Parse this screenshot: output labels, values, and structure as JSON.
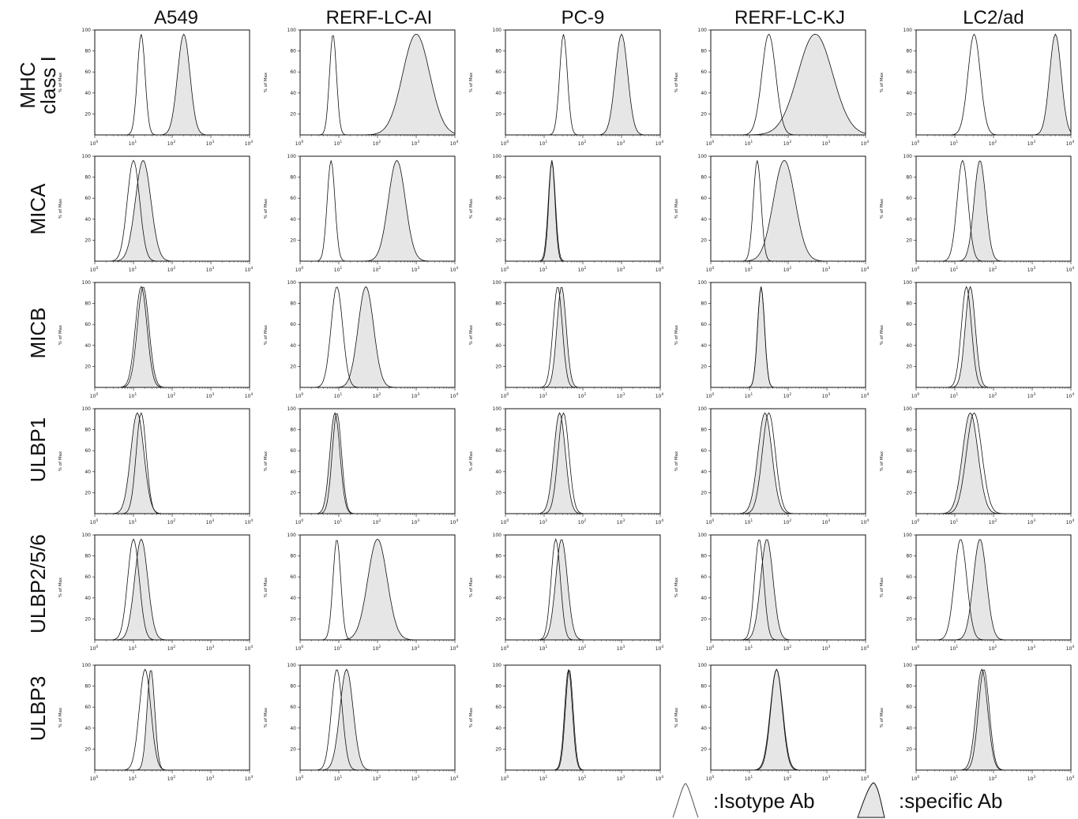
{
  "columns": [
    "A549",
    "RERF-LC-AI",
    "PC-9",
    "RERF-LC-KJ",
    "LC2/ad"
  ],
  "rows": [
    [
      "MHC",
      "class I"
    ],
    [
      "MICA"
    ],
    [
      "MICB"
    ],
    [
      "ULBP1"
    ],
    [
      "ULBP2/5/6"
    ],
    [
      "ULBP3"
    ]
  ],
  "y_axis_label": "% of Max",
  "y_ticks": [
    "20",
    "40",
    "60",
    "80",
    "100"
  ],
  "x_tick_base": "10",
  "x_tick_exponents": [
    "0",
    "1",
    "2",
    "3",
    "4"
  ],
  "legend": {
    "isotype": ":Isotype Ab",
    "specific": ":specific Ab"
  },
  "colors": {
    "specific_fill": "#e6e6e6",
    "outline": "#111111"
  },
  "chart_data": {
    "type": "histogram",
    "x_scale": "log10",
    "xlim": [
      1,
      10000
    ],
    "ylim": [
      0,
      100
    ],
    "note_series": "each panel: isotype = unfilled histogram, specific = gray-filled histogram; peak given as log10 of fluorescence intensity, width as log10 spread",
    "panels": [
      {
        "row": "MHC class I",
        "column": "A549",
        "isotype": {
          "peak": 1.2,
          "width": 0.1
        },
        "specific": {
          "peak": 2.3,
          "width": 0.16
        }
      },
      {
        "row": "MHC class I",
        "column": "RERF-LC-AI",
        "isotype": {
          "peak": 0.85,
          "width": 0.09
        },
        "specific": {
          "peak": 3.0,
          "width": 0.35
        }
      },
      {
        "row": "MHC class I",
        "column": "PC-9",
        "isotype": {
          "peak": 1.5,
          "width": 0.1
        },
        "specific": {
          "peak": 3.0,
          "width": 0.16
        }
      },
      {
        "row": "MHC class I",
        "column": "RERF-LC-KJ",
        "isotype": {
          "peak": 1.5,
          "width": 0.18
        },
        "specific": {
          "peak": 2.7,
          "width": 0.45
        }
      },
      {
        "row": "MHC class I",
        "column": "LC2/ad",
        "isotype": {
          "peak": 1.5,
          "width": 0.16
        },
        "specific": {
          "peak": 3.6,
          "width": 0.15
        }
      },
      {
        "row": "MICA",
        "column": "A549",
        "isotype": {
          "peak": 1.0,
          "width": 0.16
        },
        "specific": {
          "peak": 1.25,
          "width": 0.2
        }
      },
      {
        "row": "MICA",
        "column": "RERF-LC-AI",
        "isotype": {
          "peak": 0.8,
          "width": 0.1
        },
        "specific": {
          "peak": 2.5,
          "width": 0.22
        }
      },
      {
        "row": "MICA",
        "column": "PC-9",
        "isotype": {
          "peak": 1.2,
          "width": 0.08
        },
        "specific": {
          "peak": 1.2,
          "width": 0.09
        }
      },
      {
        "row": "MICA",
        "column": "RERF-LC-KJ",
        "isotype": {
          "peak": 1.2,
          "width": 0.1
        },
        "specific": {
          "peak": 1.9,
          "width": 0.28
        }
      },
      {
        "row": "MICA",
        "column": "LC2/ad",
        "isotype": {
          "peak": 1.2,
          "width": 0.14
        },
        "specific": {
          "peak": 1.65,
          "width": 0.15
        }
      },
      {
        "row": "MICB",
        "column": "A549",
        "isotype": {
          "peak": 1.2,
          "width": 0.15
        },
        "specific": {
          "peak": 1.25,
          "width": 0.15
        }
      },
      {
        "row": "MICB",
        "column": "RERF-LC-AI",
        "isotype": {
          "peak": 0.95,
          "width": 0.15
        },
        "specific": {
          "peak": 1.7,
          "width": 0.2
        }
      },
      {
        "row": "MICB",
        "column": "PC-9",
        "isotype": {
          "peak": 1.35,
          "width": 0.12
        },
        "specific": {
          "peak": 1.45,
          "width": 0.12
        }
      },
      {
        "row": "MICB",
        "column": "RERF-LC-KJ",
        "isotype": {
          "peak": 1.3,
          "width": 0.09
        },
        "specific": {
          "peak": 1.3,
          "width": 0.09
        }
      },
      {
        "row": "MICB",
        "column": "LC2/ad",
        "isotype": {
          "peak": 1.3,
          "width": 0.13
        },
        "specific": {
          "peak": 1.4,
          "width": 0.13
        }
      },
      {
        "row": "ULBP1",
        "column": "A549",
        "isotype": {
          "peak": 1.2,
          "width": 0.13
        },
        "specific": {
          "peak": 1.1,
          "width": 0.17
        }
      },
      {
        "row": "ULBP1",
        "column": "RERF-LC-AI",
        "isotype": {
          "peak": 0.95,
          "width": 0.12
        },
        "specific": {
          "peak": 0.9,
          "width": 0.13
        }
      },
      {
        "row": "ULBP1",
        "column": "PC-9",
        "isotype": {
          "peak": 1.5,
          "width": 0.14
        },
        "specific": {
          "peak": 1.4,
          "width": 0.15
        }
      },
      {
        "row": "ULBP1",
        "column": "RERF-LC-KJ",
        "isotype": {
          "peak": 1.5,
          "width": 0.17
        },
        "specific": {
          "peak": 1.4,
          "width": 0.18
        }
      },
      {
        "row": "ULBP1",
        "column": "LC2/ad",
        "isotype": {
          "peak": 1.5,
          "width": 0.2
        },
        "specific": {
          "peak": 1.4,
          "width": 0.2
        }
      },
      {
        "row": "ULBP2/5/6",
        "column": "A549",
        "isotype": {
          "peak": 1.0,
          "width": 0.15
        },
        "specific": {
          "peak": 1.2,
          "width": 0.17
        }
      },
      {
        "row": "ULBP2/5/6",
        "column": "RERF-LC-AI",
        "isotype": {
          "peak": 0.95,
          "width": 0.1
        },
        "specific": {
          "peak": 2.0,
          "width": 0.25
        }
      },
      {
        "row": "ULBP2/5/6",
        "column": "PC-9",
        "isotype": {
          "peak": 1.3,
          "width": 0.12
        },
        "specific": {
          "peak": 1.45,
          "width": 0.15
        }
      },
      {
        "row": "ULBP2/5/6",
        "column": "RERF-LC-KJ",
        "isotype": {
          "peak": 1.25,
          "width": 0.12
        },
        "specific": {
          "peak": 1.45,
          "width": 0.16
        }
      },
      {
        "row": "ULBP2/5/6",
        "column": "LC2/ad",
        "isotype": {
          "peak": 1.15,
          "width": 0.16
        },
        "specific": {
          "peak": 1.65,
          "width": 0.17
        }
      },
      {
        "row": "ULBP3",
        "column": "A549",
        "isotype": {
          "peak": 1.3,
          "width": 0.15
        },
        "specific": {
          "peak": 1.45,
          "width": 0.1
        }
      },
      {
        "row": "ULBP3",
        "column": "RERF-LC-AI",
        "isotype": {
          "peak": 0.95,
          "width": 0.14
        },
        "specific": {
          "peak": 1.2,
          "width": 0.17
        }
      },
      {
        "row": "ULBP3",
        "column": "PC-9",
        "isotype": {
          "peak": 1.65,
          "width": 0.1
        },
        "specific": {
          "peak": 1.63,
          "width": 0.1
        }
      },
      {
        "row": "ULBP3",
        "column": "RERF-LC-KJ",
        "isotype": {
          "peak": 1.7,
          "width": 0.15
        },
        "specific": {
          "peak": 1.7,
          "width": 0.16
        }
      },
      {
        "row": "ULBP3",
        "column": "LC2/ad",
        "isotype": {
          "peak": 1.75,
          "width": 0.14
        },
        "specific": {
          "peak": 1.7,
          "width": 0.15
        }
      }
    ]
  }
}
